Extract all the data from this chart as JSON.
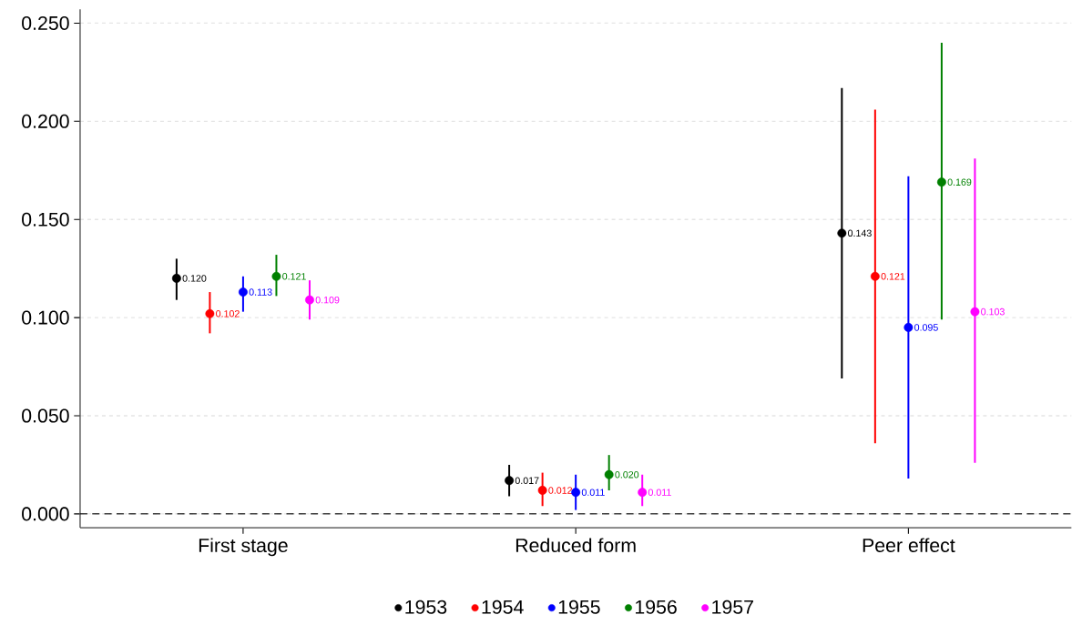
{
  "chart_data": {
    "type": "scatter",
    "categories": [
      "First stage",
      "Reduced form",
      "Peer effect"
    ],
    "series": [
      {
        "name": "1953",
        "color": "#000000",
        "values": [
          0.12,
          0.017,
          0.143
        ],
        "errors": [
          [
            0.109,
            0.13
          ],
          [
            0.009,
            0.025
          ],
          [
            0.069,
            0.217
          ]
        ],
        "value_labels": [
          "0.120",
          "0.017",
          "0.143"
        ]
      },
      {
        "name": "1954",
        "color": "#ff0000",
        "values": [
          0.102,
          0.012,
          0.121
        ],
        "errors": [
          [
            0.092,
            0.113
          ],
          [
            0.004,
            0.021
          ],
          [
            0.036,
            0.206
          ]
        ],
        "value_labels": [
          "0.102",
          "0.012",
          "0.121"
        ]
      },
      {
        "name": "1955",
        "color": "#0000ff",
        "values": [
          0.113,
          0.011,
          0.095
        ],
        "errors": [
          [
            0.103,
            0.121
          ],
          [
            0.002,
            0.02
          ],
          [
            0.018,
            0.172
          ]
        ],
        "value_labels": [
          "0.113",
          "0.011",
          "0.095"
        ]
      },
      {
        "name": "1956",
        "color": "#008000",
        "values": [
          0.121,
          0.02,
          0.169
        ],
        "errors": [
          [
            0.111,
            0.132
          ],
          [
            0.012,
            0.03
          ],
          [
            0.099,
            0.24
          ]
        ],
        "value_labels": [
          "0.121",
          "0.020",
          "0.169"
        ]
      },
      {
        "name": "1957",
        "color": "#ff00ff",
        "values": [
          0.109,
          0.011,
          0.103
        ],
        "errors": [
          [
            0.099,
            0.119
          ],
          [
            0.004,
            0.02
          ],
          [
            0.026,
            0.181
          ]
        ],
        "value_labels": [
          "0.109",
          "0.011",
          "0.103"
        ]
      }
    ],
    "ylim": [
      -0.007,
      0.257
    ],
    "yticks": [
      {
        "value": 0,
        "label": "0.000"
      },
      {
        "value": 0.05,
        "label": "0.050"
      },
      {
        "value": 0.1,
        "label": "0.100"
      },
      {
        "value": 0.15,
        "label": "0.150"
      },
      {
        "value": 0.2,
        "label": "0.200"
      },
      {
        "value": 0.25,
        "label": "0.250"
      }
    ],
    "ref_lines": [
      {
        "axis": "y",
        "value": 0,
        "color": "#000000",
        "line_style": "dashed"
      }
    ],
    "grid": "y",
    "legend": "bottom",
    "marker": "circle"
  }
}
